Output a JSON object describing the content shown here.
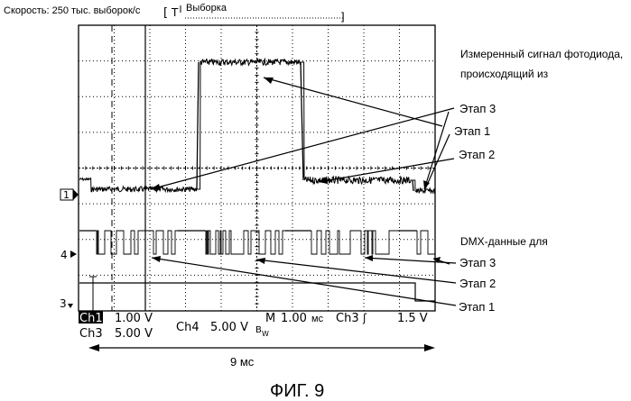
{
  "header": {
    "rate": "Скорость: 250 тыс. выборок/с",
    "trigger_mode_symbol": "T",
    "mode": "Выборка"
  },
  "markers": {
    "ch1": "1",
    "ch4": "4",
    "ch3": "3"
  },
  "annotations": {
    "photodiode_line1": "Измеренный сигнал фотодиода,",
    "photodiode_line2": "происходящий из",
    "upper_stage3": "Этап 3",
    "upper_stage1": "Этап 1",
    "upper_stage2": "Этап 2",
    "dmx_title": "DMX-данные для",
    "lower_stage3": "Этап 3",
    "lower_stage2": "Этап 2",
    "lower_stage1": "Этап 1"
  },
  "readout": {
    "ch1_label": "Ch1",
    "ch1_value": "1.00 V",
    "ch3_label": "Ch3",
    "ch3_value": "5.00 V",
    "ch4_label": "Ch4",
    "ch4_value": "5.00 V",
    "bw_label": "B",
    "bw_sub": "W",
    "timebase_label": "M",
    "timebase_value": "1.00",
    "timebase_unit": "мс",
    "trigger_label": "Ch3",
    "trigger_symbol": "ʃ",
    "trigger_value": "1.5 V"
  },
  "span": "9 мс",
  "figure_caption": "ФИГ. 9"
}
